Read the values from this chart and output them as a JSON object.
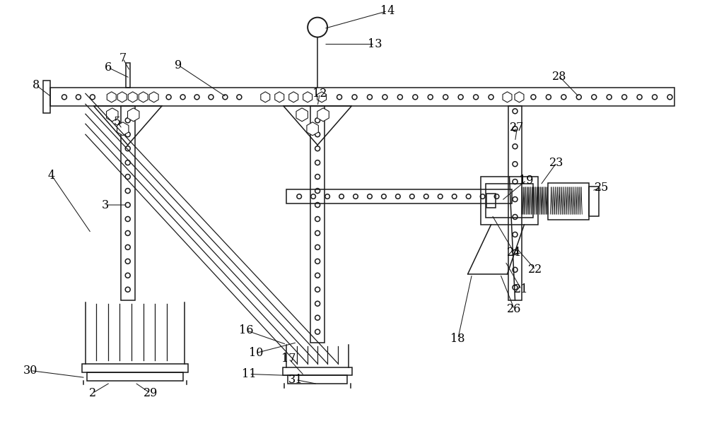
{
  "bg_color": "#ffffff",
  "line_color": "#1a1a1a",
  "label_color": "#000000",
  "fig_width": 10.0,
  "fig_height": 6.1
}
